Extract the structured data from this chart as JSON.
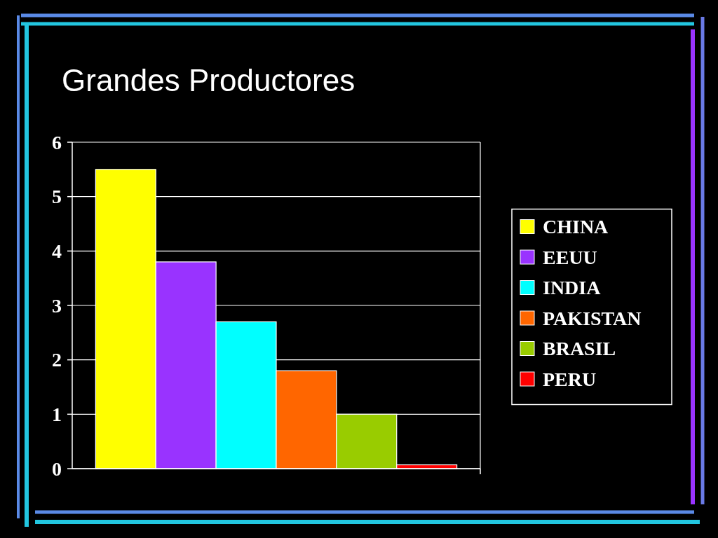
{
  "chart_data": {
    "type": "bar",
    "title": "Grandes Productores",
    "categories": [
      null
    ],
    "series": [
      {
        "name": "CHINA",
        "color": "#ffff00",
        "values": [
          5.5
        ]
      },
      {
        "name": "EEUU",
        "color": "#9933ff",
        "values": [
          3.8
        ]
      },
      {
        "name": "INDIA",
        "color": "#00ffff",
        "values": [
          2.7
        ]
      },
      {
        "name": "PAKISTAN",
        "color": "#ff6600",
        "values": [
          1.8
        ]
      },
      {
        "name": "BRASIL",
        "color": "#99cc00",
        "values": [
          1.0
        ]
      },
      {
        "name": "PERU",
        "color": "#ff0000",
        "values": [
          0.07
        ]
      }
    ],
    "ylim": [
      0,
      6
    ],
    "yticks": [
      0,
      1,
      2,
      3,
      4,
      5,
      6
    ],
    "grid": "y",
    "legend": "right"
  }
}
